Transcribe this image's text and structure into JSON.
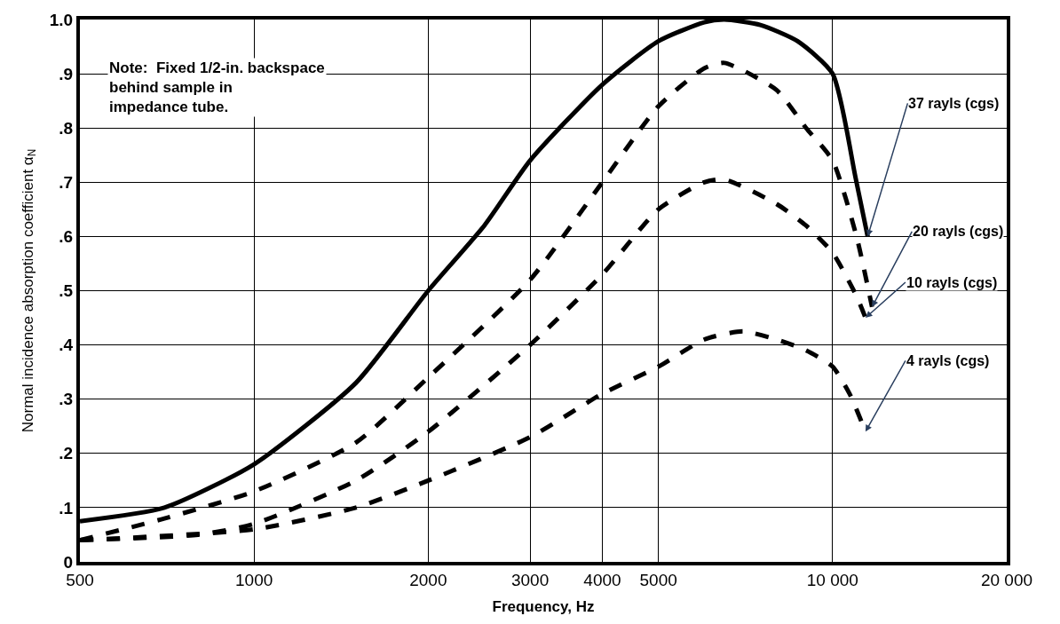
{
  "chart_data": {
    "type": "line",
    "xlabel": "Frequency, Hz",
    "ylabel": "Normal incidence absorption coefficient α$_{N}$",
    "log": "x",
    "grid": true,
    "legend": false,
    "marker": "none",
    "xlim": [
      500,
      20000
    ],
    "xticks": [
      500,
      1000,
      2000,
      3000,
      4000,
      5000,
      {
        "value": 10000,
        "label": "10 000"
      },
      {
        "value": 20000,
        "label": "20 000"
      }
    ],
    "ylim": [
      0,
      1.0
    ],
    "yticks": [
      0,
      {
        "value": 0.1,
        "label": ".1"
      },
      {
        "value": 0.2,
        "label": ".2"
      },
      {
        "value": 0.3,
        "label": ".3"
      },
      {
        "value": 0.4,
        "label": ".4"
      },
      {
        "value": 0.5,
        "label": ".5"
      },
      {
        "value": 0.6,
        "label": ".6"
      },
      {
        "value": 0.7,
        "label": ".7"
      },
      {
        "value": 0.8,
        "label": ".8"
      },
      {
        "value": 0.9,
        "label": ".9"
      },
      {
        "value": 1.0,
        "label": "1.0"
      }
    ],
    "annotations": [
      "Note:  Fixed 1/2-in. backspace\nbehind sample in\nimpedance tube."
    ],
    "series": [
      {
        "name": "37 rayls (cgs)",
        "color": "#000000",
        "line_style": "solid",
        "x": [
          500,
          700,
          1000,
          1500,
          2000,
          2500,
          3000,
          4000,
          5000,
          6000,
          6500,
          7500,
          8700,
          10000,
          10950,
          11500
        ],
        "values": [
          0.075,
          0.1,
          0.18,
          0.33,
          0.5,
          0.62,
          0.74,
          0.88,
          0.96,
          0.995,
          1.0,
          0.99,
          0.96,
          0.9,
          0.71,
          0.6
        ]
      },
      {
        "name": "20 rayls (cgs)",
        "color": "#000000",
        "line_style": "dashed",
        "x": [
          500,
          700,
          1000,
          1500,
          2000,
          3000,
          4000,
          5000,
          6000,
          6500,
          8000,
          9000,
          10000,
          11000,
          11700
        ],
        "values": [
          0.04,
          0.08,
          0.13,
          0.22,
          0.34,
          0.52,
          0.7,
          0.84,
          0.91,
          0.92,
          0.87,
          0.8,
          0.74,
          0.6,
          0.47
        ]
      },
      {
        "name": "10 rayls (cgs)",
        "color": "#000000",
        "line_style": "dashed",
        "x": [
          500,
          800,
          1000,
          1500,
          2000,
          3000,
          4000,
          5000,
          6000,
          6500,
          8000,
          9000,
          10000,
          11000,
          11400
        ],
        "values": [
          0.04,
          0.05,
          0.07,
          0.15,
          0.24,
          0.4,
          0.53,
          0.65,
          0.7,
          0.705,
          0.66,
          0.62,
          0.57,
          0.49,
          0.45
        ]
      },
      {
        "name": "4 rayls (cgs)",
        "color": "#000000",
        "line_style": "dashed",
        "x": [
          500,
          1000,
          1500,
          2000,
          3000,
          4000,
          5000,
          6000,
          7000,
          8000,
          9000,
          10000,
          10700,
          11400
        ],
        "values": [
          0.04,
          0.06,
          0.1,
          0.15,
          0.23,
          0.31,
          0.36,
          0.41,
          0.425,
          0.41,
          0.39,
          0.36,
          0.31,
          0.24
        ]
      }
    ]
  }
}
